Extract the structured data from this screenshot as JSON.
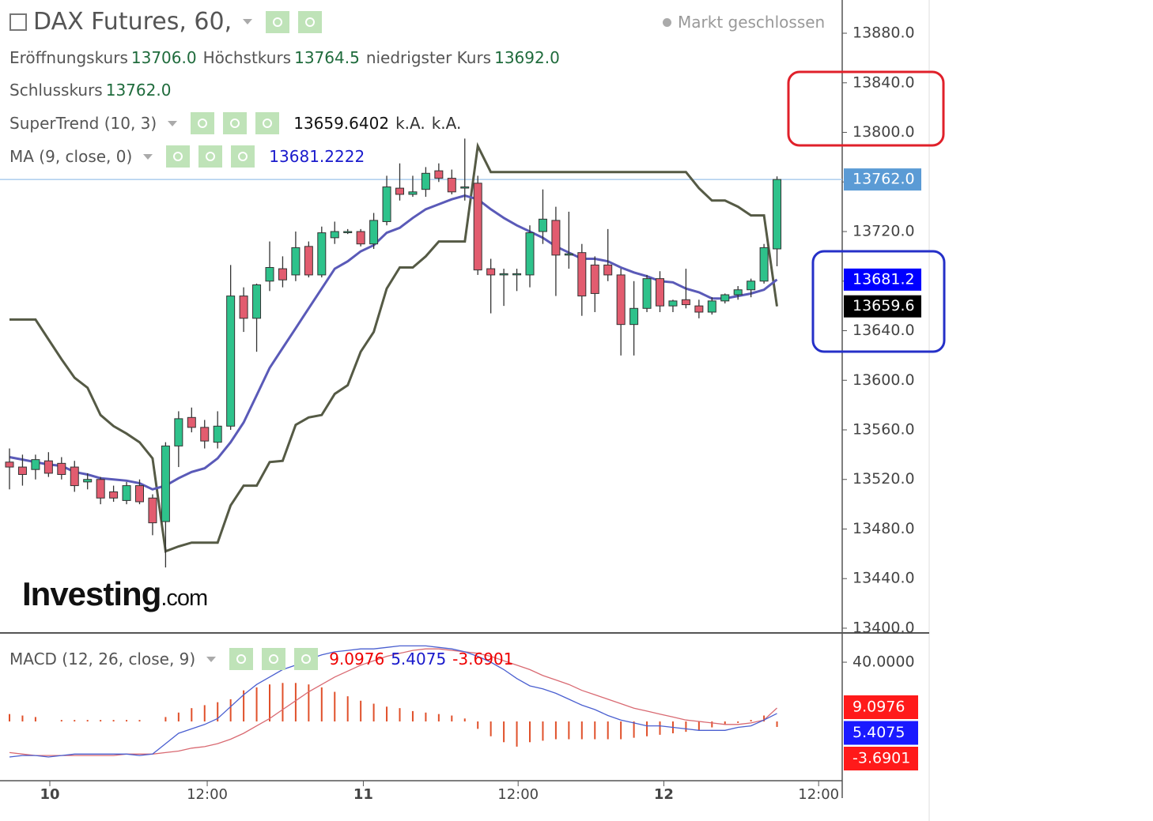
{
  "header": {
    "title": "DAX Futures, 60,",
    "status": "Markt geschlossen"
  },
  "logo": {
    "brand": "Investing",
    "suffix": ".com"
  },
  "chart_data": [
    {
      "type": "candlestick",
      "ohlc_labels": [
        {
          "name": "Eröffnungskurs",
          "label": "13706.0"
        },
        {
          "name": "Höchstkurs",
          "label": "13764.5"
        },
        {
          "name": "niedrigster Kurs",
          "label": "13692.0"
        },
        {
          "name": "Schlusskurs",
          "label": "13762.0"
        }
      ],
      "open": [
        13534,
        13530,
        13528,
        13535,
        13533,
        13530,
        13518,
        13520,
        13510,
        13503,
        13515,
        13505,
        13486,
        13547,
        13570,
        13562,
        13550,
        13563,
        13668,
        13650,
        13680,
        13690,
        13685,
        13708,
        13685,
        13715,
        13720,
        13720,
        13710,
        13728,
        13755,
        13750,
        13754,
        13769,
        13763,
        13756,
        13759,
        13690,
        13685,
        13686,
        13685,
        13720,
        13729,
        13701,
        13703,
        13693,
        13693,
        13685,
        13645,
        13658,
        13682,
        13660,
        13665,
        13660,
        13655,
        13664,
        13669,
        13673,
        13680,
        13706
      ],
      "high": [
        13545,
        13540,
        13540,
        13542,
        13538,
        13535,
        13525,
        13522,
        13515,
        13518,
        13520,
        13508,
        13550,
        13575,
        13578,
        13568,
        13575,
        13693,
        13675,
        13678,
        13712,
        13700,
        13720,
        13712,
        13724,
        13728,
        13722,
        13722,
        13735,
        13765,
        13775,
        13765,
        13772,
        13775,
        13770,
        13795,
        13765,
        13698,
        13690,
        13690,
        13725,
        13754,
        13740,
        13736,
        13710,
        13700,
        13722,
        13690,
        13680,
        13685,
        13688,
        13665,
        13690,
        13665,
        13667,
        13670,
        13676,
        13682,
        13710,
        13764.5
      ],
      "low": [
        13512,
        13515,
        13520,
        13522,
        13520,
        13510,
        13512,
        13500,
        13502,
        13500,
        13500,
        13475,
        13449,
        13530,
        13558,
        13545,
        13545,
        13560,
        13639,
        13623,
        13672,
        13675,
        13680,
        13683,
        13683,
        13710,
        13718,
        13708,
        13706,
        13725,
        13745,
        13748,
        13748,
        13760,
        13750,
        13745,
        13685,
        13654,
        13660,
        13672,
        13675,
        13710,
        13668,
        13690,
        13652,
        13655,
        13680,
        13620,
        13620,
        13655,
        13655,
        13655,
        13658,
        13650,
        13653,
        13662,
        13665,
        13667,
        13678,
        13692
      ],
      "close": [
        13530,
        13524,
        13536,
        13525,
        13524,
        13515,
        13520,
        13505,
        13505,
        13515,
        13502,
        13485,
        13547,
        13569,
        13562,
        13551,
        13563,
        13668,
        13650,
        13677,
        13691,
        13681,
        13707,
        13685,
        13719,
        13720,
        13720,
        13710,
        13729,
        13756,
        13750,
        13752,
        13767,
        13763,
        13752,
        13756,
        13689,
        13685,
        13686,
        13686,
        13719,
        13730,
        13701,
        13702,
        13668,
        13670,
        13685,
        13645,
        13658,
        13682,
        13660,
        13664,
        13661,
        13655,
        13664,
        13669,
        13673,
        13680,
        13707,
        13762
      ],
      "up_color": "#2ec28b",
      "down_color": "#e25c6f",
      "series": [
        {
          "name": "SuperTrend (10, 3)",
          "color": "#555a45",
          "last_label": "13659.6402",
          "extra_labels": [
            "k.A.",
            "k.A."
          ],
          "values": [
            13649,
            13649,
            13649,
            13633,
            13617,
            13602,
            13594,
            13572,
            13563,
            13557,
            13550,
            13537,
            13462,
            13466,
            13469,
            13469,
            13469,
            13499,
            13515,
            13515,
            13534,
            13535,
            13564,
            13570,
            13572,
            13589,
            13596,
            13623,
            13639,
            13674,
            13691,
            13691,
            13700,
            13712,
            13712,
            13712,
            13789,
            13768,
            13768,
            13768,
            13768,
            13768,
            13768,
            13768,
            13768,
            13768,
            13768,
            13768,
            13768,
            13768,
            13768,
            13768,
            13768,
            13755,
            13745,
            13745,
            13740,
            13733,
            13733,
            13659.6402
          ]
        },
        {
          "name": "MA (9, close, 0)",
          "color": "#5a5ab8",
          "last_label": "13681.2222",
          "values": [
            13538,
            13536,
            13534,
            13532,
            13531,
            13526,
            13524,
            13521,
            13520,
            13519,
            13517,
            13512,
            13515,
            13521,
            13526,
            13529,
            13537,
            13550,
            13566,
            13588,
            13610,
            13626,
            13642,
            13658,
            13674,
            13690,
            13696,
            13704,
            13709,
            13719,
            13723,
            13731,
            13738,
            13742,
            13746,
            13749,
            13746,
            13738,
            13731,
            13725,
            13720,
            13715,
            13708,
            13703,
            13698,
            13698,
            13696,
            13691,
            13687,
            13684,
            13680,
            13679,
            13674,
            13671,
            13666,
            13666,
            13668,
            13670,
            13673,
            13681.2222
          ]
        }
      ],
      "price_labels": [
        {
          "value": 13762,
          "label": "13762.0"
        },
        {
          "value": 13681.2222,
          "label": "13681.2"
        },
        {
          "value": 13659.6402,
          "label": "13659.6"
        }
      ],
      "ylim": [
        13396.8,
        13906.8
      ],
      "yticks": [
        {
          "value": 13880,
          "label": "13880.0"
        },
        {
          "value": 13840,
          "label": "13840.0"
        },
        {
          "value": 13800,
          "label": "13800.0"
        },
        {
          "value": 13760,
          "label": "13760.0"
        },
        {
          "value": 13720,
          "label": "13720.0"
        },
        {
          "value": 13680,
          "label": "13680.0"
        },
        {
          "value": 13640,
          "label": "13640.0"
        },
        {
          "value": 13600,
          "label": "13600.0"
        },
        {
          "value": 13560,
          "label": "13560.0"
        },
        {
          "value": 13520,
          "label": "13520.0"
        },
        {
          "value": 13480,
          "label": "13480.0"
        },
        {
          "value": 13440,
          "label": "13440.0"
        },
        {
          "value": 13400,
          "label": "13400.0"
        }
      ]
    },
    {
      "type": "macd",
      "title": "MACD (12, 26, close, 9)",
      "series": [
        {
          "color": "#d96a72",
          "label": "9.0976",
          "values": [
            -21,
            -22,
            -23,
            -23,
            -23,
            -23,
            -23,
            -23,
            -23,
            -22,
            -22,
            -22,
            -21,
            -20,
            -18,
            -17,
            -15,
            -12,
            -8,
            -3,
            2,
            8,
            14,
            20,
            25,
            30,
            34,
            38,
            41,
            44,
            46,
            48,
            49,
            49,
            48,
            47,
            46,
            44,
            41,
            38,
            35,
            31,
            28,
            25,
            21,
            18,
            15,
            12,
            9,
            7,
            5,
            3,
            1,
            0,
            -1,
            -2,
            -2,
            -1,
            1,
            9.0976
          ]
        },
        {
          "color": "#4a5fd0",
          "label": "5.4075",
          "values": [
            -24,
            -23,
            -23,
            -24,
            -23,
            -22,
            -22,
            -22,
            -22,
            -22,
            -23,
            -22,
            -15,
            -8,
            -5,
            -2,
            2,
            10,
            18,
            25,
            30,
            35,
            38,
            42,
            45,
            47,
            48,
            49,
            49,
            50,
            51,
            51,
            51,
            50,
            49,
            47,
            44,
            40,
            35,
            29,
            24,
            22,
            19,
            15,
            11,
            8,
            4,
            1,
            -1,
            -3,
            -3,
            -4,
            -5,
            -6,
            -6,
            -6,
            -4,
            -3,
            1,
            5.4075
          ]
        }
      ],
      "histogram": {
        "color": "#e0502a",
        "label": "-3.6901",
        "values": [
          5,
          4,
          3,
          0,
          1,
          1,
          1,
          1,
          1,
          1,
          1,
          0,
          3,
          6,
          9,
          11,
          13,
          15,
          21,
          23,
          25,
          26,
          26,
          25,
          23,
          20,
          17,
          14,
          12,
          10,
          9,
          7,
          6,
          5,
          4,
          2,
          -5,
          -10,
          -14,
          -17,
          -14,
          -13,
          -12,
          -12,
          -12,
          -12,
          -12,
          -12,
          -11,
          -10,
          -9,
          -8,
          -7,
          -6,
          -4,
          -2,
          -1,
          1,
          4,
          -3.6901
        ]
      },
      "ylim": [
        -40,
        60.3
      ],
      "yticks": [
        {
          "value": 40,
          "label": "40.0000"
        }
      ],
      "xticks": [
        {
          "value": 3.1,
          "label": "10"
        },
        {
          "value": 15.2,
          "label": "12:00"
        },
        {
          "value": 27.2,
          "label": "11"
        },
        {
          "value": 39.1,
          "label": "12:00"
        },
        {
          "value": 50.3,
          "label": "12"
        },
        {
          "value": 62.2,
          "label": "12:00"
        }
      ]
    }
  ]
}
